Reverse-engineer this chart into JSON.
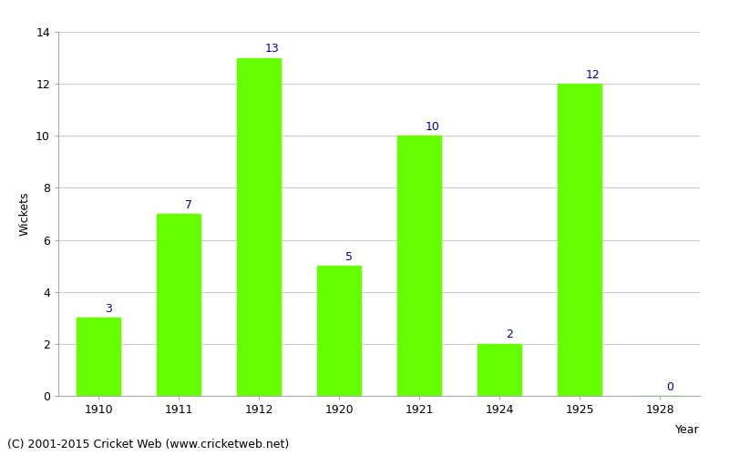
{
  "years": [
    "1910",
    "1911",
    "1912",
    "1920",
    "1921",
    "1924",
    "1925",
    "1928"
  ],
  "values": [
    3,
    7,
    13,
    5,
    10,
    2,
    12,
    0
  ],
  "bar_color": "#66ff00",
  "label_color": "#0000aa",
  "xlabel": "Year",
  "ylabel": "Wickets",
  "ylim": [
    0,
    14
  ],
  "yticks": [
    0,
    2,
    4,
    6,
    8,
    10,
    12,
    14
  ],
  "footer": "(C) 2001-2015 Cricket Web (www.cricketweb.net)",
  "background_color": "#ffffff",
  "grid_color": "#cccccc",
  "label_fontsize": 9,
  "axis_fontsize": 9,
  "footer_fontsize": 9
}
